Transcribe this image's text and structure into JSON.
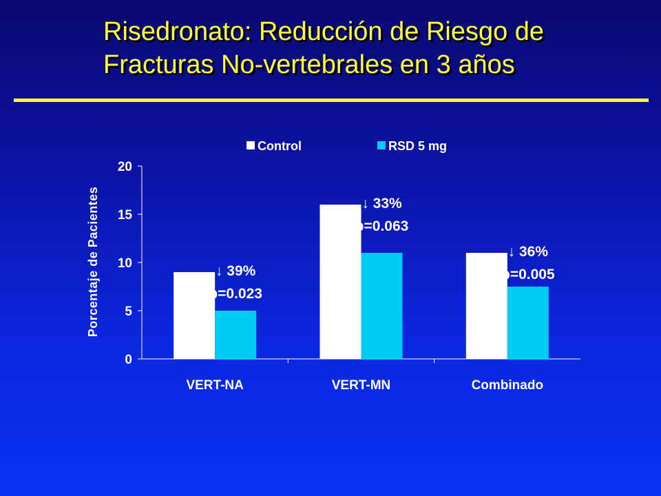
{
  "title": {
    "line1": "Risedronato: Reducción de Riesgo de",
    "line2": "Fracturas No-vertebrales en 3 años"
  },
  "colors": {
    "title": "#ffff33",
    "control": "#ffffff",
    "rsd": "#00ccf5",
    "text": "#ffffff"
  },
  "chart_data": {
    "type": "bar",
    "categories": [
      "VERT-NA",
      "VERT-MN",
      "Combinado"
    ],
    "series": [
      {
        "name": "Control",
        "values": [
          9,
          16,
          11
        ]
      },
      {
        "name": "RSD 5 mg",
        "values": [
          5,
          11,
          7.5
        ]
      }
    ],
    "ylabel": "Porcentaje de Pacientes",
    "xlabel": "",
    "ylim": [
      0,
      20
    ],
    "yticks": [
      0,
      5,
      10,
      15,
      20
    ],
    "grid": false,
    "legend": "top-center",
    "annotations": [
      {
        "category": "VERT-NA",
        "reduction": "39%",
        "p": "p=0.023"
      },
      {
        "category": "VERT-MN",
        "reduction": "33%",
        "p": "p=0.063"
      },
      {
        "category": "Combinado",
        "reduction": "36%",
        "p": "p=0.005"
      }
    ],
    "down_arrow": "↓"
  }
}
